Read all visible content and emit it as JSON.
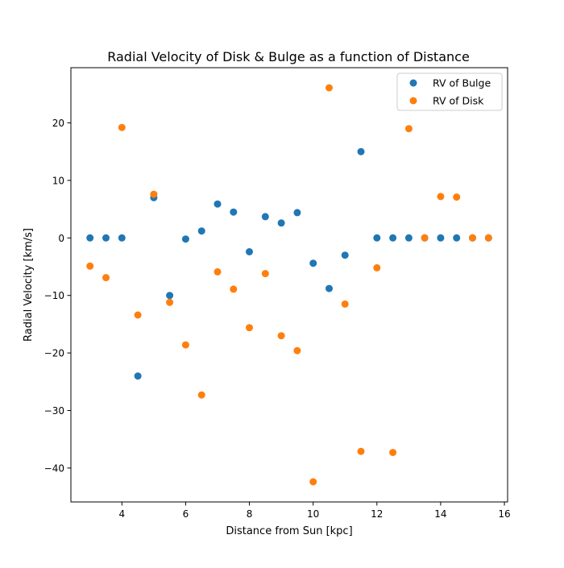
{
  "chart_data": {
    "type": "scatter",
    "title": "Radial Velocity of Disk & Bulge as a function of Distance",
    "xlabel": "Distance from Sun [kpc]",
    "ylabel": "Radial Velocity [km/s]",
    "xlim": [
      2.4,
      16.1
    ],
    "ylim": [
      -45.9,
      29.6
    ],
    "xticks": [
      4,
      6,
      8,
      10,
      12,
      14,
      16
    ],
    "yticks": [
      -40,
      -30,
      -20,
      -10,
      0,
      10,
      20
    ],
    "grid": false,
    "legend_position": "top-right",
    "series": [
      {
        "name": "RV of Bulge",
        "color": "#1f77b4",
        "x": [
          3,
          3.5,
          4,
          4.5,
          5,
          5.5,
          6,
          6.5,
          7,
          7.5,
          8,
          8.5,
          9,
          9.5,
          10,
          10.5,
          11,
          11.5,
          12,
          12.5,
          13,
          13.5,
          14,
          14.5,
          15,
          15.5
        ],
        "y": [
          0,
          0,
          0,
          -24,
          7,
          -10,
          -0.2,
          1.2,
          5.9,
          4.5,
          -2.4,
          3.7,
          2.6,
          4.4,
          -4.4,
          -8.8,
          -3,
          15,
          0,
          0,
          0,
          0,
          0,
          0,
          0,
          0
        ]
      },
      {
        "name": "RV of Disk",
        "color": "#ff7f0e",
        "x": [
          3,
          3.5,
          4,
          4.5,
          5,
          5.5,
          6,
          6.5,
          7,
          7.5,
          8,
          8.5,
          9,
          9.5,
          10,
          10.5,
          11,
          11.5,
          12,
          12.5,
          13,
          13.5,
          14,
          14.5,
          15,
          15.5
        ],
        "y": [
          -4.9,
          -6.9,
          19.2,
          -13.4,
          7.6,
          -11.2,
          -18.6,
          -27.3,
          -5.9,
          -8.9,
          -15.6,
          -6.2,
          -17,
          -19.6,
          -42.4,
          26.1,
          -11.5,
          -37.1,
          -5.2,
          -37.3,
          19,
          0,
          7.2,
          7.1,
          0,
          0
        ]
      }
    ]
  }
}
